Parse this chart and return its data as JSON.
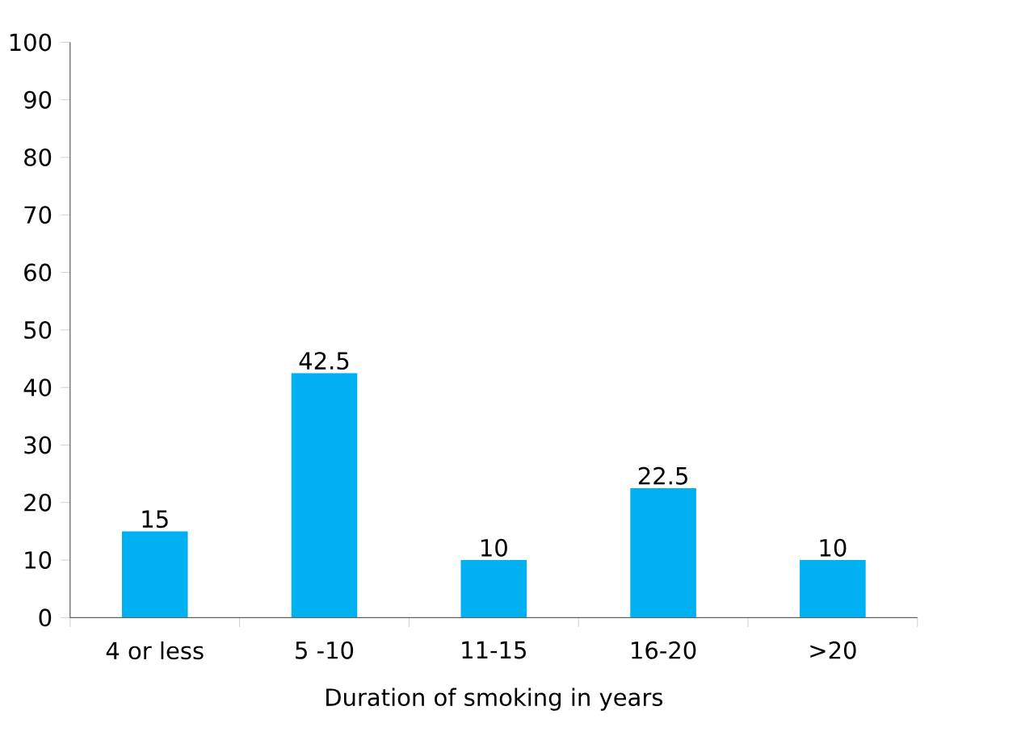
{
  "chart_data": {
    "type": "bar",
    "xlabel": "Duration of smoking in years",
    "categories": [
      "4 or less",
      "5 -10",
      "11-15",
      "16-20",
      ">20"
    ],
    "values": [
      15,
      42.5,
      10,
      22.5,
      10
    ],
    "color": "#00b0f0",
    "ylim": [
      0,
      100
    ],
    "yticks": [
      0,
      10,
      20,
      30,
      40,
      50,
      60,
      70,
      80,
      90,
      100
    ],
    "data_labels": true,
    "grid": false
  }
}
